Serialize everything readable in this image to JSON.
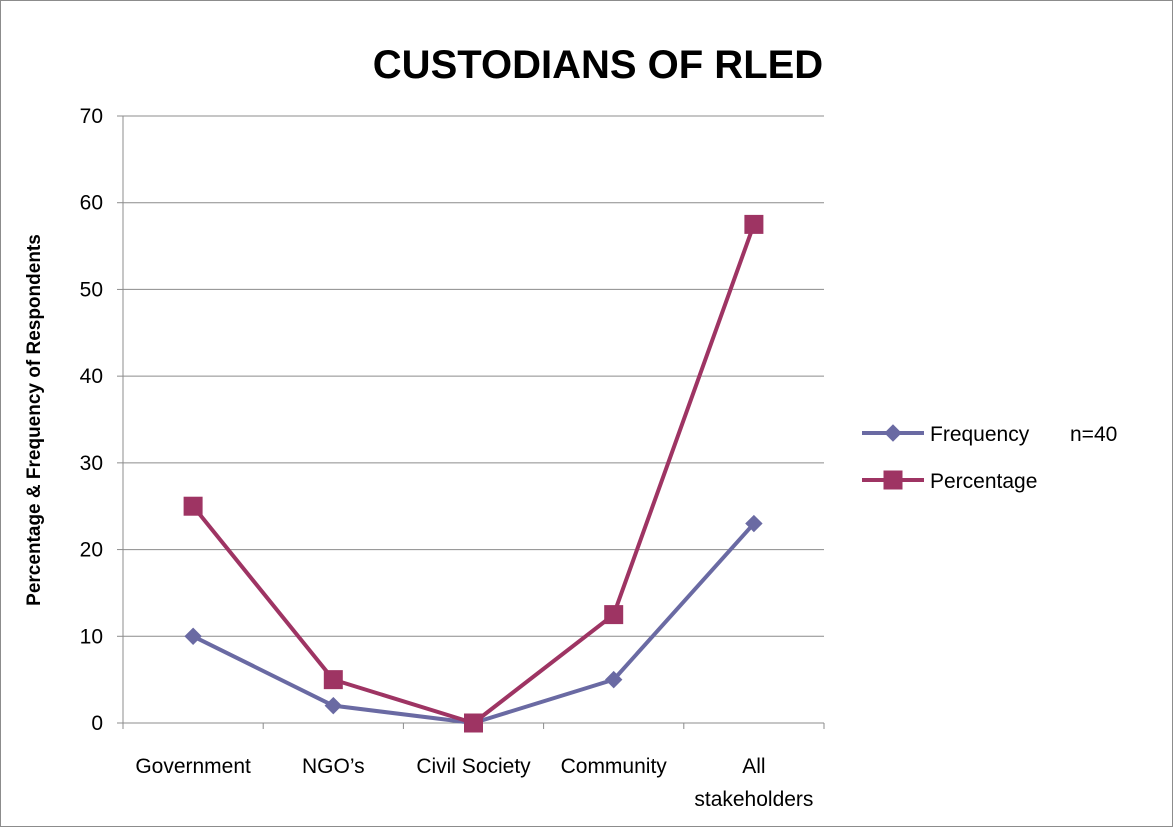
{
  "chart_data": {
    "type": "line",
    "title": "CUSTODIANS OF RLED",
    "ylabel": "Percentage & Frequency of Respondents",
    "xlabel": "",
    "categories": [
      [
        "Government"
      ],
      [
        "NGO’s"
      ],
      [
        "Civil Society"
      ],
      [
        "Community"
      ],
      [
        "All",
        "stakeholders"
      ]
    ],
    "ylim": [
      0,
      70
    ],
    "yticks": [
      0,
      10,
      20,
      30,
      40,
      50,
      60,
      70
    ],
    "grid": true,
    "legend_position": "right",
    "series": [
      {
        "name": "Frequency",
        "legend_note": "n=40",
        "color": "#6a6aa3",
        "marker": "diamond",
        "values": [
          10,
          2,
          0,
          5,
          23
        ]
      },
      {
        "name": "Percentage",
        "color": "#9e3463",
        "marker": "square",
        "values": [
          25,
          5,
          0,
          12.5,
          57.5
        ]
      }
    ]
  }
}
